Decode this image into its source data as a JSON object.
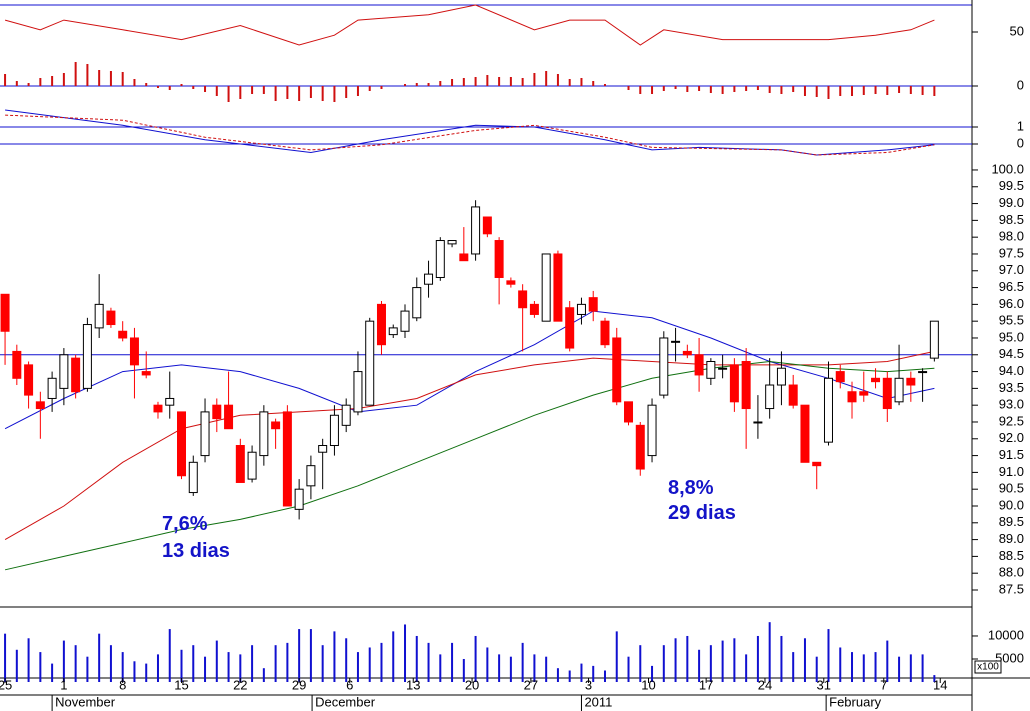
{
  "chart_data": [
    {
      "type": "line",
      "ylim": [
        30,
        75
      ],
      "yticks": [
        50
      ],
      "series": [
        {
          "color": "#d01010",
          "x": [
            0,
            3,
            5,
            10,
            15,
            20,
            25,
            28,
            30,
            36,
            40,
            45,
            48,
            51,
            54,
            56,
            61,
            66,
            70,
            74,
            77,
            79
          ],
          "values": [
            61,
            52,
            61,
            52,
            43,
            56,
            38,
            47,
            61,
            66,
            75,
            52,
            61,
            61,
            38,
            52,
            43,
            43,
            43,
            47,
            52,
            61
          ]
        }
      ]
    },
    {
      "type": "bar",
      "ylim": [
        -1.8,
        2.6
      ],
      "yticks": [
        0
      ],
      "color": "#d01010",
      "values": [
        1.2,
        0.5,
        0.3,
        0.8,
        1.0,
        1.3,
        2.4,
        2.2,
        1.6,
        1.5,
        1.4,
        0.7,
        0.3,
        -0.2,
        -0.4,
        0.2,
        -0.3,
        -0.6,
        -1.0,
        -1.6,
        -1.3,
        -0.8,
        -0.8,
        -1.5,
        -1.3,
        -1.5,
        -1.2,
        -1.5,
        -1.6,
        -1.2,
        -1.0,
        -0.5,
        -0.3,
        0,
        0.2,
        0.3,
        0.3,
        0.5,
        0.7,
        0.8,
        0.9,
        1.1,
        0.9,
        0.9,
        0.8,
        1.3,
        1.5,
        1.2,
        0.7,
        0.8,
        0.5,
        0.2,
        0,
        -0.4,
        -0.8,
        -0.8,
        -0.5,
        -0.3,
        -0.6,
        -0.5,
        -0.7,
        -0.8,
        -0.6,
        -0.5,
        -0.4,
        -0.7,
        -0.8,
        -0.6,
        -1.0,
        -1.1,
        -1.3,
        -1.0,
        -1.0,
        -0.9,
        -0.8,
        -0.9,
        -0.7,
        -0.8,
        -0.9,
        -1.0
      ]
    },
    {
      "type": "line",
      "ylim": [
        -0.8,
        2.3
      ],
      "yticks": [
        0,
        1
      ],
      "series": [
        {
          "color": "#1010d0",
          "x": [
            0,
            10,
            17,
            26,
            32,
            40,
            45,
            51,
            55,
            59,
            66,
            69,
            75,
            79
          ],
          "values": [
            2.0,
            1.1,
            0.25,
            -0.5,
            0.25,
            1.1,
            1.0,
            0.25,
            -0.35,
            -0.2,
            -0.35,
            -0.65,
            -0.35,
            -0.05
          ]
        },
        {
          "color": "#d01010",
          "dashed": true,
          "x": [
            0,
            10,
            17,
            26,
            32,
            40,
            45,
            51,
            55,
            59,
            66,
            69,
            75,
            79
          ],
          "values": [
            1.7,
            1.4,
            0.4,
            -0.35,
            -0.05,
            0.8,
            1.1,
            0.4,
            -0.2,
            -0.25,
            -0.35,
            -0.65,
            -0.5,
            -0.05
          ]
        }
      ]
    },
    {
      "type": "candlestick",
      "ylim": [
        87.0,
        100.6
      ],
      "yticks": [
        87.5,
        {
          "value": 88,
          "label": "88.0"
        },
        88.5,
        {
          "value": 89,
          "label": "89.0"
        },
        89.5,
        {
          "value": 90,
          "label": "90.0"
        },
        90.5,
        {
          "value": 91,
          "label": "91.0"
        },
        91.5,
        {
          "value": 92,
          "label": "92.0"
        },
        92.5,
        {
          "value": 93,
          "label": "93.0"
        },
        93.5,
        {
          "value": 94,
          "label": "94.0"
        },
        94.5,
        {
          "value": 95,
          "label": "95.0"
        },
        95.5,
        {
          "value": 96,
          "label": "96.0"
        },
        96.5,
        {
          "value": 97,
          "label": "97.0"
        },
        97.5,
        {
          "value": 98,
          "label": "98.0"
        },
        98.5,
        {
          "value": 99,
          "label": "99.0"
        },
        99.5,
        {
          "value": 100,
          "label": "100.0"
        }
      ],
      "up_color": "#ffffff",
      "down_color": "#ff0000",
      "open": [
        96.3,
        94.6,
        94.2,
        93.1,
        93.2,
        93.5,
        94.4,
        93.5,
        95.3,
        95.8,
        95.2,
        95.0,
        94.0,
        93.0,
        93.0,
        92.8,
        90.4,
        91.5,
        93.0,
        93.0,
        91.8,
        90.8,
        91.5,
        92.5,
        92.8,
        89.9,
        90.6,
        91.6,
        91.8,
        92.4,
        92.8,
        93.0,
        96.0,
        95.1,
        95.2,
        95.6,
        96.6,
        96.8,
        97.8,
        97.5,
        97.5,
        98.6,
        97.9,
        96.7,
        96.4,
        96.0,
        95.5,
        97.5,
        95.9,
        95.7,
        96.2,
        95.5,
        95.0,
        93.1,
        92.4,
        91.5,
        93.3,
        94.9,
        94.6,
        94.5,
        93.8,
        94.1,
        94.2,
        94.3,
        92.5,
        92.9,
        93.6,
        93.6,
        93.0,
        91.3,
        91.9,
        94.0,
        93.4,
        93.4,
        93.8,
        93.8,
        93.1,
        93.8,
        94.0,
        94.4
      ],
      "high": [
        96.3,
        94.8,
        94.3,
        93.4,
        94.0,
        94.7,
        94.5,
        95.6,
        96.9,
        95.9,
        95.5,
        95.3,
        94.6,
        93.1,
        94.0,
        92.8,
        91.5,
        93.2,
        93.2,
        94.0,
        92.0,
        91.8,
        93.0,
        92.6,
        93.0,
        90.8,
        91.5,
        92.0,
        93.0,
        93.2,
        94.6,
        95.6,
        96.1,
        95.4,
        96.0,
        96.8,
        97.3,
        98.0,
        97.9,
        98.3,
        99.1,
        98.6,
        98.0,
        96.8,
        96.6,
        96.1,
        97.5,
        97.6,
        96.1,
        96.2,
        96.4,
        95.6,
        95.3,
        93.1,
        92.5,
        93.2,
        95.2,
        95.3,
        94.8,
        95.0,
        94.4,
        94.5,
        94.4,
        94.7,
        93.3,
        94.4,
        94.6,
        93.9,
        93.0,
        91.3,
        94.3,
        94.2,
        93.7,
        94.0,
        94.1,
        94.0,
        94.8,
        94.0,
        94.1,
        95.5
      ],
      "low": [
        94.2,
        93.6,
        92.9,
        92.0,
        92.8,
        93.0,
        93.2,
        93.4,
        95.0,
        95.3,
        94.9,
        93.2,
        93.8,
        92.6,
        92.6,
        90.8,
        90.3,
        91.3,
        92.2,
        92.3,
        90.7,
        90.7,
        91.2,
        91.7,
        90.0,
        89.6,
        90.2,
        90.5,
        91.5,
        92.2,
        92.7,
        93.0,
        94.5,
        95.0,
        95.0,
        95.5,
        96.2,
        96.7,
        97.7,
        97.3,
        97.3,
        98.0,
        96.0,
        96.5,
        94.6,
        95.6,
        95.5,
        95.5,
        94.6,
        95.4,
        95.5,
        94.7,
        93.0,
        92.4,
        90.9,
        91.3,
        93.2,
        94.3,
        94.4,
        93.4,
        93.6,
        93.8,
        92.8,
        91.7,
        92.0,
        92.6,
        93.0,
        92.9,
        91.3,
        90.5,
        91.8,
        93.5,
        92.6,
        93.1,
        93.5,
        92.5,
        93.0,
        93.1,
        93.1,
        94.3
      ],
      "close": [
        95.2,
        93.8,
        93.3,
        92.9,
        93.8,
        94.5,
        93.4,
        95.4,
        96.0,
        95.4,
        95.0,
        94.2,
        93.9,
        92.8,
        93.2,
        90.9,
        91.3,
        92.8,
        92.6,
        92.3,
        90.7,
        91.6,
        92.8,
        92.3,
        90.0,
        90.5,
        91.2,
        91.8,
        92.7,
        93.0,
        94.0,
        95.5,
        94.8,
        95.3,
        95.8,
        96.5,
        96.9,
        97.9,
        97.9,
        97.3,
        98.9,
        98.1,
        96.8,
        96.6,
        95.9,
        95.7,
        97.5,
        95.5,
        94.7,
        96.0,
        95.8,
        94.8,
        93.1,
        92.5,
        91.1,
        93.0,
        95.0,
        94.9,
        94.5,
        93.9,
        94.3,
        94.1,
        93.1,
        92.9,
        92.5,
        93.6,
        94.1,
        93.0,
        91.3,
        91.2,
        93.8,
        93.7,
        93.1,
        93.3,
        93.7,
        92.9,
        93.8,
        93.6,
        94.0,
        95.5
      ],
      "series": [
        {
          "color": "#1010d0",
          "x": [
            0,
            5,
            10,
            15,
            20,
            25,
            30,
            35,
            40,
            45,
            50,
            55,
            60,
            65,
            70,
            75,
            79
          ],
          "values": [
            92.3,
            93.2,
            94.0,
            94.2,
            94.0,
            93.5,
            92.8,
            93.0,
            94.0,
            94.8,
            95.8,
            95.6,
            95.0,
            94.3,
            93.8,
            93.2,
            93.5
          ]
        },
        {
          "color": "#d01010",
          "x": [
            0,
            5,
            10,
            15,
            20,
            25,
            30,
            35,
            40,
            45,
            50,
            55,
            60,
            65,
            70,
            75,
            79
          ],
          "values": [
            89.0,
            90.0,
            91.3,
            92.3,
            92.7,
            92.8,
            92.9,
            93.2,
            93.9,
            94.2,
            94.4,
            94.3,
            94.2,
            94.2,
            94.2,
            94.3,
            94.6
          ]
        },
        {
          "color": "#107010",
          "x": [
            0,
            5,
            10,
            15,
            20,
            25,
            30,
            35,
            40,
            45,
            50,
            55,
            60,
            65,
            70,
            75,
            79
          ],
          "values": [
            88.1,
            88.5,
            88.9,
            89.3,
            89.6,
            90.0,
            90.6,
            91.3,
            92.0,
            92.7,
            93.3,
            93.8,
            94.1,
            94.3,
            94.1,
            94.0,
            94.1
          ]
        }
      ],
      "hline": 94.5,
      "hline_color": "#1010d0",
      "annotations": [
        "7,6%",
        "13 dias",
        "8,8%",
        "29 dias"
      ]
    },
    {
      "type": "bar",
      "ylim": [
        0,
        16100
      ],
      "yticks": [
        5000,
        10000
      ],
      "color": "#1010d0",
      "unit_label": "x100",
      "values": [
        10500,
        7000,
        9500,
        6500,
        4000,
        9000,
        8000,
        5500,
        10500,
        8000,
        6500,
        4500,
        4000,
        6000,
        11500,
        7000,
        8000,
        5500,
        9000,
        6500,
        6000,
        8000,
        3000,
        8000,
        8500,
        11500,
        11500,
        8000,
        11000,
        9500,
        6500,
        7500,
        8500,
        11000,
        12500,
        10000,
        8500,
        6000,
        8500,
        5000,
        10000,
        7500,
        6000,
        5500,
        8500,
        6000,
        5500,
        3000,
        2500,
        4000,
        3500,
        2500,
        11000,
        5500,
        8000,
        3500,
        8000,
        9500,
        10000,
        7000,
        8000,
        9000,
        9500,
        6000,
        10000,
        13000,
        10000,
        6500,
        9500,
        5500,
        11500,
        7500,
        6500,
        6000,
        6500,
        9000,
        5500,
        6000,
        6000,
        1500
      ],
      "xlim": [
        -0.43,
        82.2
      ],
      "xticks": [
        {
          "value": 0,
          "label": "25"
        },
        {
          "value": 5,
          "label": "1"
        },
        {
          "value": 10,
          "label": "8"
        },
        {
          "value": 15,
          "label": "15"
        },
        {
          "value": 20,
          "label": "22"
        },
        {
          "value": 25,
          "label": "29"
        },
        {
          "value": 29.3,
          "label": "6"
        },
        {
          "value": 34.7,
          "label": "13"
        },
        {
          "value": 39.7,
          "label": "20"
        },
        {
          "value": 44.7,
          "label": "27"
        },
        {
          "value": 49.6,
          "label": "3"
        },
        {
          "value": 54.7,
          "label": "10"
        },
        {
          "value": 59.6,
          "label": "17"
        },
        {
          "value": 64.6,
          "label": "24"
        },
        {
          "value": 69.6,
          "label": "31"
        },
        {
          "value": 74.7,
          "label": "7"
        },
        {
          "value": 79.5,
          "label": "14"
        }
      ],
      "month_ticks": [
        {
          "value": 4,
          "label": "November"
        },
        {
          "value": 26.1,
          "label": "December"
        },
        {
          "value": 49,
          "label": "2011"
        },
        {
          "value": 69.8,
          "label": "February"
        }
      ]
    }
  ]
}
